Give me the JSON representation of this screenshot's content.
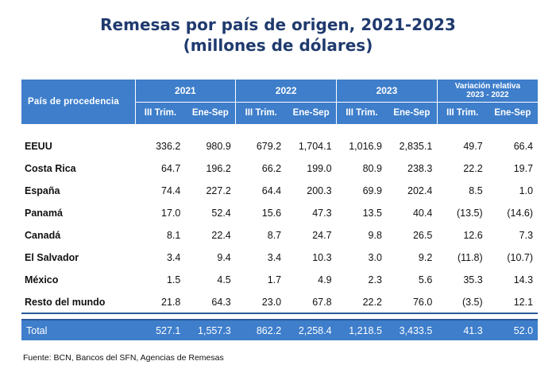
{
  "title": {
    "line1": "Remesas por país de origen, 2021-2023",
    "line2": "(millones de dólares)"
  },
  "table": {
    "header": {
      "country": "País de procedencia",
      "years": [
        "2021",
        "2022",
        "2023"
      ],
      "variation_line1": "Variación relativa",
      "variation_line2": "2023 - 2022",
      "subcols": [
        "III Trim.",
        "Ene-Sep",
        "III Trim.",
        "Ene-Sep",
        "III Trim.",
        "Ene-Sep",
        "III Trim.",
        "Ene-Sep"
      ]
    },
    "rows": [
      {
        "country": "EEUU",
        "values": [
          "336.2",
          "980.9",
          "679.2",
          "1,704.1",
          "1,016.9",
          "2,835.1",
          "49.7",
          "66.4"
        ]
      },
      {
        "country": "Costa Rica",
        "values": [
          "64.7",
          "196.2",
          "66.2",
          "199.0",
          "80.9",
          "238.3",
          "22.2",
          "19.7"
        ]
      },
      {
        "country": "España",
        "values": [
          "74.4",
          "227.2",
          "64.4",
          "200.3",
          "69.9",
          "202.4",
          "8.5",
          "1.0"
        ]
      },
      {
        "country": "Panamá",
        "values": [
          "17.0",
          "52.4",
          "15.6",
          "47.3",
          "13.5",
          "40.4",
          "(13.5)",
          "(14.6)"
        ]
      },
      {
        "country": "Canadá",
        "values": [
          "8.1",
          "22.4",
          "8.7",
          "24.7",
          "9.8",
          "26.5",
          "12.6",
          "7.3"
        ]
      },
      {
        "country": "El Salvador",
        "values": [
          "3.4",
          "9.4",
          "3.4",
          "10.3",
          "3.0",
          "9.2",
          "(11.8)",
          "(10.7)"
        ]
      },
      {
        "country": "México",
        "values": [
          "1.5",
          "4.5",
          "1.7",
          "4.9",
          "2.3",
          "5.6",
          "35.3",
          "14.3"
        ]
      },
      {
        "country": "Resto del mundo",
        "values": [
          "21.8",
          "64.3",
          "23.0",
          "67.8",
          "22.2",
          "76.0",
          "(3.5)",
          "12.1"
        ]
      }
    ],
    "total": {
      "label": "Total",
      "values": [
        "527.1",
        "1,557.3",
        "862.2",
        "2,258.4",
        "1,218.5",
        "3,433.5",
        "41.3",
        "52.0"
      ]
    }
  },
  "source": "Fuente: BCN, Bancos del SFN, Agencias de Remesas",
  "colors": {
    "header_bg": "#3e7ecb",
    "title": "#1f3a6e"
  }
}
